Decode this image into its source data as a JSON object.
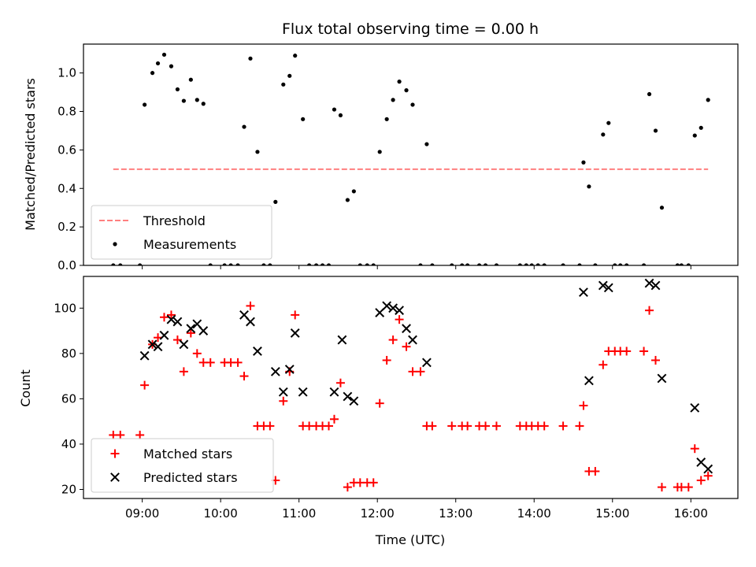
{
  "chart_data": [
    {
      "type": "scatter",
      "title": "Flux total observing time = 0.00 h",
      "ylabel": "Matched/Predicted stars",
      "xlabel": "",
      "xlim": [
        8.25,
        16.6
      ],
      "ylim": [
        0,
        1.15
      ],
      "yticks": [
        0.0,
        0.2,
        0.4,
        0.6,
        0.8,
        1.0
      ],
      "ytick_labels": [
        "0.0",
        "0.2",
        "0.4",
        "0.6",
        "0.8",
        "1.0"
      ],
      "legend_position": "lower-left",
      "series": [
        {
          "name": "Threshold",
          "kind": "dashed-line",
          "color": "#ff7f7f",
          "points": [
            [
              8.63,
              0.5
            ],
            [
              16.22,
              0.5
            ]
          ]
        },
        {
          "name": "Measurements",
          "kind": "dot",
          "color": "#000000",
          "points": [
            [
              8.63,
              0.0
            ],
            [
              8.72,
              0.0
            ],
            [
              8.97,
              0.0
            ],
            [
              9.03,
              0.835
            ],
            [
              9.13,
              1.0
            ],
            [
              9.2,
              1.05
            ],
            [
              9.28,
              1.095
            ],
            [
              9.37,
              1.035
            ],
            [
              9.45,
              0.915
            ],
            [
              9.53,
              0.855
            ],
            [
              9.62,
              0.965
            ],
            [
              9.7,
              0.86
            ],
            [
              9.78,
              0.84
            ],
            [
              9.87,
              0.0
            ],
            [
              10.05,
              0.0
            ],
            [
              10.13,
              0.0
            ],
            [
              10.22,
              0.0
            ],
            [
              10.3,
              0.72
            ],
            [
              10.38,
              1.075
            ],
            [
              10.47,
              0.59
            ],
            [
              10.55,
              0.0
            ],
            [
              10.63,
              0.0
            ],
            [
              10.7,
              0.33
            ],
            [
              10.8,
              0.94
            ],
            [
              10.88,
              0.985
            ],
            [
              10.95,
              1.09
            ],
            [
              11.05,
              0.76
            ],
            [
              11.13,
              0.0
            ],
            [
              11.22,
              0.0
            ],
            [
              11.3,
              0.0
            ],
            [
              11.38,
              0.0
            ],
            [
              11.45,
              0.81
            ],
            [
              11.53,
              0.78
            ],
            [
              11.62,
              0.34
            ],
            [
              11.7,
              0.385
            ],
            [
              11.78,
              0.0
            ],
            [
              11.87,
              0.0
            ],
            [
              11.95,
              0.0
            ],
            [
              12.03,
              0.59
            ],
            [
              12.12,
              0.76
            ],
            [
              12.2,
              0.86
            ],
            [
              12.28,
              0.955
            ],
            [
              12.37,
              0.91
            ],
            [
              12.45,
              0.835
            ],
            [
              12.55,
              0.0
            ],
            [
              12.63,
              0.63
            ],
            [
              12.7,
              0.0
            ],
            [
              12.95,
              0.0
            ],
            [
              13.08,
              0.0
            ],
            [
              13.15,
              0.0
            ],
            [
              13.3,
              0.0
            ],
            [
              13.38,
              0.0
            ],
            [
              13.52,
              0.0
            ],
            [
              13.82,
              0.0
            ],
            [
              13.9,
              0.0
            ],
            [
              13.97,
              0.0
            ],
            [
              14.05,
              0.0
            ],
            [
              14.13,
              0.0
            ],
            [
              14.37,
              0.0
            ],
            [
              14.58,
              0.0
            ],
            [
              14.63,
              0.535
            ],
            [
              14.7,
              0.41
            ],
            [
              14.78,
              0.0
            ],
            [
              14.88,
              0.68
            ],
            [
              14.95,
              0.74
            ],
            [
              15.03,
              0.0
            ],
            [
              15.1,
              0.0
            ],
            [
              15.18,
              0.0
            ],
            [
              15.4,
              0.0
            ],
            [
              15.47,
              0.89
            ],
            [
              15.55,
              0.7
            ],
            [
              15.63,
              0.3
            ],
            [
              15.83,
              0.0
            ],
            [
              15.88,
              0.0
            ],
            [
              15.97,
              0.0
            ],
            [
              16.05,
              0.675
            ],
            [
              16.13,
              0.715
            ],
            [
              16.22,
              0.86
            ]
          ]
        }
      ]
    },
    {
      "type": "scatter",
      "title": "",
      "ylabel": "Count",
      "xlabel": "Time (UTC)",
      "xlim": [
        8.25,
        16.6
      ],
      "ylim": [
        16,
        114
      ],
      "xticks": [
        9,
        10,
        11,
        12,
        13,
        14,
        15,
        16
      ],
      "xtick_labels": [
        "09:00",
        "10:00",
        "11:00",
        "12:00",
        "13:00",
        "14:00",
        "15:00",
        "16:00"
      ],
      "yticks": [
        20,
        40,
        60,
        80,
        100
      ],
      "ytick_labels": [
        "20",
        "40",
        "60",
        "80",
        "100"
      ],
      "legend_position": "lower-left",
      "series": [
        {
          "name": "Matched stars",
          "kind": "plus",
          "color": "#ff0000",
          "points": [
            [
              8.63,
              44
            ],
            [
              8.72,
              44
            ],
            [
              8.97,
              44
            ],
            [
              9.03,
              66
            ],
            [
              9.13,
              84
            ],
            [
              9.2,
              87
            ],
            [
              9.28,
              96
            ],
            [
              9.37,
              97
            ],
            [
              9.45,
              86
            ],
            [
              9.53,
              72
            ],
            [
              9.62,
              89
            ],
            [
              9.7,
              80
            ],
            [
              9.78,
              76
            ],
            [
              9.87,
              76
            ],
            [
              10.05,
              76
            ],
            [
              10.13,
              76
            ],
            [
              10.22,
              76
            ],
            [
              10.3,
              70
            ],
            [
              10.38,
              101
            ],
            [
              10.47,
              48
            ],
            [
              10.55,
              48
            ],
            [
              10.63,
              48
            ],
            [
              10.7,
              24
            ],
            [
              10.8,
              59
            ],
            [
              10.88,
              72
            ],
            [
              10.95,
              97
            ],
            [
              11.05,
              48
            ],
            [
              11.13,
              48
            ],
            [
              11.22,
              48
            ],
            [
              11.3,
              48
            ],
            [
              11.38,
              48
            ],
            [
              11.45,
              51
            ],
            [
              11.53,
              67
            ],
            [
              11.62,
              21
            ],
            [
              11.7,
              23
            ],
            [
              11.78,
              23
            ],
            [
              11.87,
              23
            ],
            [
              11.95,
              23
            ],
            [
              12.03,
              58
            ],
            [
              12.12,
              77
            ],
            [
              12.2,
              86
            ],
            [
              12.28,
              95
            ],
            [
              12.37,
              83
            ],
            [
              12.45,
              72
            ],
            [
              12.55,
              72
            ],
            [
              12.63,
              48
            ],
            [
              12.7,
              48
            ],
            [
              12.95,
              48
            ],
            [
              13.08,
              48
            ],
            [
              13.15,
              48
            ],
            [
              13.3,
              48
            ],
            [
              13.38,
              48
            ],
            [
              13.52,
              48
            ],
            [
              13.82,
              48
            ],
            [
              13.9,
              48
            ],
            [
              13.97,
              48
            ],
            [
              14.05,
              48
            ],
            [
              14.13,
              48
            ],
            [
              14.37,
              48
            ],
            [
              14.58,
              48
            ],
            [
              14.63,
              57
            ],
            [
              14.7,
              28
            ],
            [
              14.78,
              28
            ],
            [
              14.88,
              75
            ],
            [
              14.95,
              81
            ],
            [
              15.03,
              81
            ],
            [
              15.1,
              81
            ],
            [
              15.18,
              81
            ],
            [
              15.4,
              81
            ],
            [
              15.47,
              99
            ],
            [
              15.55,
              77
            ],
            [
              15.63,
              21
            ],
            [
              15.83,
              21
            ],
            [
              15.88,
              21
            ],
            [
              15.97,
              21
            ],
            [
              16.05,
              38
            ],
            [
              16.13,
              24
            ],
            [
              16.22,
              26
            ]
          ]
        },
        {
          "name": "Predicted stars",
          "kind": "cross",
          "color": "#000000",
          "points": [
            [
              9.03,
              79
            ],
            [
              9.13,
              84
            ],
            [
              9.2,
              83
            ],
            [
              9.28,
              88
            ],
            [
              9.37,
              95
            ],
            [
              9.45,
              94
            ],
            [
              9.53,
              84
            ],
            [
              9.62,
              91
            ],
            [
              9.7,
              93
            ],
            [
              9.78,
              90
            ],
            [
              10.3,
              97
            ],
            [
              10.38,
              94
            ],
            [
              10.47,
              81
            ],
            [
              10.7,
              72
            ],
            [
              10.8,
              63
            ],
            [
              10.88,
              73
            ],
            [
              10.95,
              89
            ],
            [
              11.05,
              63
            ],
            [
              11.45,
              63
            ],
            [
              11.55,
              86
            ],
            [
              11.62,
              61
            ],
            [
              11.7,
              59
            ],
            [
              12.03,
              98
            ],
            [
              12.12,
              101
            ],
            [
              12.2,
              100
            ],
            [
              12.28,
              99
            ],
            [
              12.37,
              91
            ],
            [
              12.45,
              86
            ],
            [
              12.63,
              76
            ],
            [
              14.63,
              107
            ],
            [
              14.7,
              68
            ],
            [
              14.88,
              110
            ],
            [
              14.95,
              109
            ],
            [
              15.47,
              111
            ],
            [
              15.55,
              110
            ],
            [
              15.63,
              69
            ],
            [
              16.05,
              56
            ],
            [
              16.13,
              32
            ],
            [
              16.22,
              29
            ]
          ]
        }
      ]
    }
  ]
}
